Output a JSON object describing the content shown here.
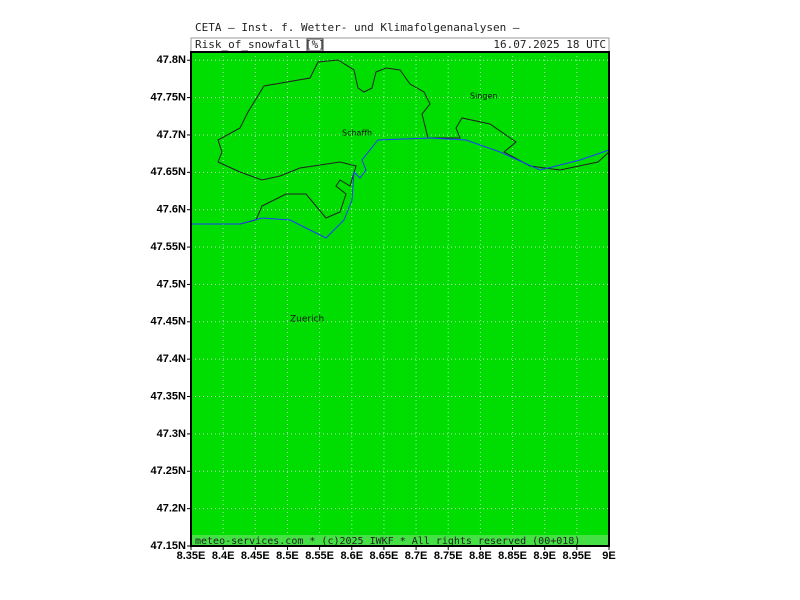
{
  "header": {
    "title": "CETA — Inst. f. Wetter- und Klimafolgenanalysen —",
    "parameter": "Risk_of_snowfall",
    "unit": "[%]",
    "valid_time": "16.07.2025 18 UTC"
  },
  "places": [
    "Singen",
    "Schaffh",
    "Zuerich"
  ],
  "footer": "meteo-services.com * (c)2025 IWKF * All rights reserved (00+018)",
  "xlim": [
    8.35,
    9.0
  ],
  "ylim": [
    47.15,
    47.811
  ],
  "xticks": [
    {
      "value": 8.35,
      "label": "8.35E"
    },
    {
      "value": 8.4,
      "label": "8.4E"
    },
    {
      "value": 8.45,
      "label": "8.45E"
    },
    {
      "value": 8.5,
      "label": "8.5E"
    },
    {
      "value": 8.55,
      "label": "8.55E"
    },
    {
      "value": 8.6,
      "label": "8.6E"
    },
    {
      "value": 8.65,
      "label": "8.65E"
    },
    {
      "value": 8.7,
      "label": "8.7E"
    },
    {
      "value": 8.75,
      "label": "8.75E"
    },
    {
      "value": 8.8,
      "label": "8.8E"
    },
    {
      "value": 8.85,
      "label": "8.85E"
    },
    {
      "value": 8.9,
      "label": "8.9E"
    },
    {
      "value": 8.95,
      "label": "8.95E"
    },
    {
      "value": 9.0,
      "label": "9E"
    }
  ],
  "yticks": [
    {
      "value": 47.15,
      "label": "47.15N"
    },
    {
      "value": 47.2,
      "label": "47.2N"
    },
    {
      "value": 47.25,
      "label": "47.25N"
    },
    {
      "value": 47.3,
      "label": "47.3N"
    },
    {
      "value": 47.35,
      "label": "47.35N"
    },
    {
      "value": 47.4,
      "label": "47.4N"
    },
    {
      "value": 47.45,
      "label": "47.45N"
    },
    {
      "value": 47.5,
      "label": "47.5N"
    },
    {
      "value": 47.55,
      "label": "47.55N"
    },
    {
      "value": 47.6,
      "label": "47.6N"
    },
    {
      "value": 47.65,
      "label": "47.65N"
    },
    {
      "value": 47.7,
      "label": "47.7N"
    },
    {
      "value": 47.75,
      "label": "47.75N"
    },
    {
      "value": 47.8,
      "label": "47.8N"
    }
  ]
}
